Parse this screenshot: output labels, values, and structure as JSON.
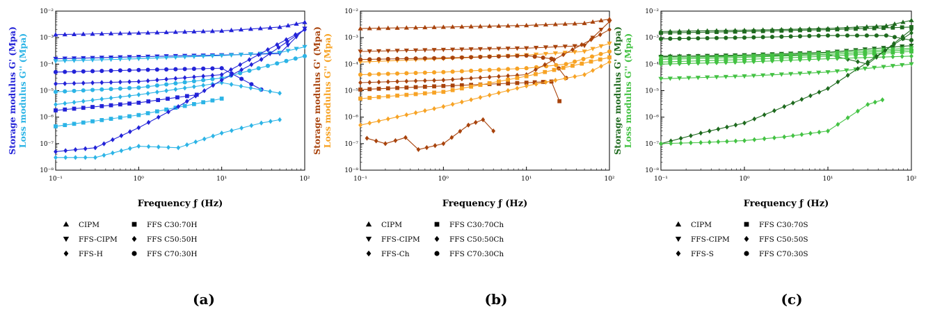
{
  "chart_data": [
    {
      "panel_label": "(a)",
      "type": "line",
      "xlabel": "Frequency ƒ (Hz)",
      "ylabel_storage": "Storage modulus G' (Mpa)",
      "ylabel_loss": "Loss modulus G'' (Mpa)",
      "x_scale": "log",
      "y_scale": "log",
      "xlim": [
        0.1,
        100
      ],
      "ylim": [
        1e-08,
        0.01
      ],
      "x_ticks": [
        "10⁻¹",
        "10⁰",
        "10¹",
        "10²"
      ],
      "y_ticks": [
        "10⁻⁸",
        "10⁻⁷",
        "10⁻⁶",
        "10⁻⁵",
        "10⁻⁴",
        "10⁻³",
        "10⁻²"
      ],
      "colors": {
        "storage": "#2323d8",
        "loss": "#2cb4e6"
      },
      "legend_col1": [
        "CIPM",
        "FFS-CIPM",
        "FFS-H"
      ],
      "legend_col2": [
        "FFS C30:70H",
        "FFS C50:50H",
        "FFS C70:30H"
      ],
      "series": [
        {
          "name": "CIPM",
          "marker": "triangle-up",
          "modulus": "storage",
          "x": [
            0.1,
            1,
            10,
            50,
            100
          ],
          "y": [
            0.0013,
            0.0015,
            0.0018,
            0.0025,
            0.0038
          ]
        },
        {
          "name": "FFS-CIPM",
          "marker": "triangle-down",
          "modulus": "storage",
          "x": [
            0.1,
            1,
            10,
            50,
            100
          ],
          "y": [
            0.00016,
            0.00019,
            0.00022,
            0.00025,
            0.0022
          ]
        },
        {
          "name": "FFS-CIPM",
          "marker": "triangle-down",
          "modulus": "loss",
          "x": [
            0.1,
            1,
            10,
            50,
            100
          ],
          "y": [
            0.00013,
            0.00016,
            0.00021,
            0.00027,
            0.00045
          ]
        },
        {
          "name": "FFS C70:30H",
          "marker": "circle",
          "modulus": "storage",
          "x": [
            0.1,
            1,
            10,
            30
          ],
          "y": [
            5e-05,
            6e-05,
            7e-05,
            1.1e-05
          ]
        },
        {
          "name": "FFS C70:30H",
          "marker": "circle",
          "modulus": "loss",
          "x": [
            0.1,
            1,
            10,
            100
          ],
          "y": [
            9e-06,
            1.3e-05,
            3e-05,
            0.0002
          ]
        },
        {
          "name": "FFS C50:50H",
          "marker": "diamond",
          "modulus": "storage",
          "x": [
            0.1,
            1,
            10,
            100
          ],
          "y": [
            1.8e-05,
            2.2e-05,
            4e-05,
            0.002
          ]
        },
        {
          "name": "FFS C50:50H",
          "marker": "diamond",
          "modulus": "loss",
          "x": [
            0.1,
            1,
            10,
            50
          ],
          "y": [
            3e-06,
            7e-06,
            2e-05,
            8e-06
          ]
        },
        {
          "name": "FFS C30:70H",
          "marker": "square",
          "modulus": "storage",
          "x": [
            0.1,
            1,
            5
          ],
          "y": [
            1.8e-06,
            3.5e-06,
            7e-06
          ]
        },
        {
          "name": "FFS C30:70H",
          "marker": "square",
          "modulus": "loss",
          "x": [
            0.1,
            1,
            10
          ],
          "y": [
            4.5e-07,
            1.2e-06,
            5e-06
          ]
        },
        {
          "name": "FFS-H",
          "marker": "diamond",
          "modulus": "storage",
          "x": [
            0.1,
            0.3,
            1,
            3,
            10,
            30,
            100
          ],
          "y": [
            5e-08,
            7e-08,
            4e-07,
            2.5e-06,
            2.5e-05,
            0.00015,
            0.002
          ]
        },
        {
          "name": "FFS-H",
          "marker": "diamond",
          "modulus": "loss",
          "x": [
            0.1,
            0.3,
            1,
            3,
            10,
            30,
            50
          ],
          "y": [
            3e-08,
            3e-08,
            8e-08,
            7e-08,
            2.5e-07,
            6e-07,
            8e-07
          ]
        }
      ]
    },
    {
      "panel_label": "(b)",
      "type": "line",
      "xlabel": "Frequency ƒ (Hz)",
      "ylabel_storage": "Storage modulus G' (Mpa)",
      "ylabel_loss": "Loss modulus G'' (Mpa)",
      "x_scale": "log",
      "y_scale": "log",
      "xlim": [
        0.1,
        100
      ],
      "ylim": [
        1e-08,
        0.01
      ],
      "x_ticks": [
        "10⁻¹",
        "10⁰",
        "10¹",
        "10²"
      ],
      "y_ticks": [
        "10⁻⁸",
        "10⁻⁷",
        "10⁻⁶",
        "10⁻⁵",
        "10⁻⁴",
        "10⁻³",
        "10⁻²"
      ],
      "colors": {
        "storage": "#a8430c",
        "loss": "#f7a325"
      },
      "legend_col1": [
        "CIPM",
        "FFS-CIPM",
        "FFS-Ch"
      ],
      "legend_col2": [
        "FFS C30:70Ch",
        "FFS C50:50Ch",
        "FFS C70:30Ch"
      ],
      "series": [
        {
          "name": "CIPM",
          "marker": "triangle-up",
          "modulus": "storage",
          "x": [
            0.1,
            1,
            10,
            50,
            100
          ],
          "y": [
            0.0022,
            0.0025,
            0.0029,
            0.0035,
            0.005
          ]
        },
        {
          "name": "FFS-CIPM",
          "marker": "triangle-down",
          "modulus": "storage",
          "x": [
            0.1,
            1,
            10,
            50,
            100
          ],
          "y": [
            0.0003,
            0.00035,
            0.0004,
            0.0005,
            0.004
          ]
        },
        {
          "name": "FFS-CIPM",
          "marker": "triangle-down",
          "modulus": "loss",
          "x": [
            0.1,
            1,
            10,
            50,
            100
          ],
          "y": [
            0.00012,
            0.00016,
            0.00022,
            0.0003,
            0.0006
          ]
        },
        {
          "name": "FFS C70:30Ch",
          "marker": "circle",
          "modulus": "storage",
          "x": [
            0.1,
            1,
            10,
            20,
            30
          ],
          "y": [
            0.00015,
            0.00017,
            0.00021,
            0.00016,
            3e-05
          ]
        },
        {
          "name": "FFS C70:30Ch",
          "marker": "circle",
          "modulus": "loss",
          "x": [
            0.1,
            1,
            10,
            30,
            100
          ],
          "y": [
            4e-05,
            5e-05,
            7e-05,
            0.0001,
            0.0003
          ]
        },
        {
          "name": "FFS C50:50Ch",
          "marker": "diamond",
          "modulus": "storage",
          "x": [
            0.1,
            1,
            10,
            100
          ],
          "y": [
            2e-05,
            2.5e-05,
            4e-05,
            0.002
          ]
        },
        {
          "name": "FFS C30:70Ch",
          "marker": "square",
          "modulus": "storage",
          "x": [
            0.1,
            1,
            10,
            20,
            25
          ],
          "y": [
            1.1e-05,
            1.5e-05,
            2e-05,
            2.2e-05,
            4e-06
          ]
        },
        {
          "name": "FFS C30:70Ch",
          "marker": "square",
          "modulus": "loss",
          "x": [
            0.1,
            1,
            10,
            100
          ],
          "y": [
            5e-06,
            9e-06,
            3.5e-05,
            0.00018
          ]
        },
        {
          "name": "FFS-Ch",
          "marker": "diamond",
          "modulus": "loss",
          "x": [
            0.1,
            1,
            10,
            50,
            100
          ],
          "y": [
            5e-07,
            2.5e-06,
            1.5e-05,
            4e-05,
            0.00012
          ]
        },
        {
          "name": "FFS-Ch",
          "marker": "diamond",
          "modulus": "storage",
          "x": [
            0.12,
            0.2,
            0.35,
            0.5,
            1,
            2,
            3,
            4
          ],
          "y": [
            1.6e-07,
            1e-07,
            1.7e-07,
            6e-08,
            1e-07,
            5e-07,
            8e-07,
            3e-07
          ]
        }
      ]
    },
    {
      "panel_label": "(c)",
      "type": "line",
      "xlabel": "Frequency ƒ (Hz)",
      "ylabel_storage": "Storage modulus G' (Mpa)",
      "ylabel_loss": "Loss modulus G'' (Mpa)",
      "x_scale": "log",
      "y_scale": "log",
      "xlim": [
        0.1,
        100
      ],
      "ylim": [
        1e-08,
        0.01
      ],
      "x_ticks": [
        "10⁻¹",
        "10⁰",
        "10¹",
        "10²"
      ],
      "y_ticks": [
        "10⁻⁸",
        "10⁻⁷",
        "10⁻⁶",
        "10⁻⁵",
        "10⁻⁴",
        "10⁻³",
        "10⁻²"
      ],
      "colors": {
        "storage": "#1e6a1e",
        "loss": "#43c243"
      },
      "legend_col1": [
        "CIPM",
        "FFS-CIPM",
        "FFS-S"
      ],
      "legend_col2": [
        "FFS C30:70S",
        "FFS C50:50S",
        "FFS C70:30S"
      ],
      "series": [
        {
          "name": "CIPM",
          "marker": "triangle-up",
          "modulus": "storage",
          "x": [
            0.1,
            1,
            10,
            50,
            100
          ],
          "y": [
            0.0017,
            0.0019,
            0.0022,
            0.0028,
            0.0045
          ]
        },
        {
          "name": "FFS C30:70S",
          "marker": "square",
          "modulus": "storage",
          "x": [
            0.1,
            1,
            10,
            100
          ],
          "y": [
            0.0015,
            0.0017,
            0.002,
            0.0025
          ]
        },
        {
          "name": "FFS C70:30S",
          "marker": "circle",
          "modulus": "storage",
          "x": [
            0.1,
            1,
            10,
            50,
            100
          ],
          "y": [
            0.0009,
            0.001,
            0.0012,
            0.0012,
            0.0008
          ]
        },
        {
          "name": "FFS C50:50S",
          "marker": "diamond",
          "modulus": "storage",
          "x": [
            0.1,
            1,
            10,
            30,
            100
          ],
          "y": [
            0.0002,
            0.0002,
            0.00023,
            0.0001,
            0.002
          ]
        },
        {
          "name": "FFS-CIPM",
          "marker": "triangle-down",
          "modulus": "storage",
          "x": [
            0.1,
            1,
            10,
            100
          ],
          "y": [
            0.00019,
            0.00022,
            0.00028,
            0.0005
          ]
        },
        {
          "name": "FFS-CIPM",
          "marker": "triangle-down",
          "modulus": "loss",
          "x": [
            0.1,
            1,
            10,
            100
          ],
          "y": [
            0.00017,
            0.0002,
            0.00026,
            0.0004
          ]
        },
        {
          "name": "FFS C70:30S",
          "marker": "circle",
          "modulus": "loss",
          "x": [
            0.1,
            1,
            10,
            100
          ],
          "y": [
            0.00015,
            0.00018,
            0.00023,
            0.00035
          ]
        },
        {
          "name": "FFS C30:70S",
          "marker": "square",
          "modulus": "loss",
          "x": [
            0.1,
            1,
            10,
            100
          ],
          "y": [
            0.00012,
            0.00015,
            0.0002,
            0.0003
          ]
        },
        {
          "name": "FFS C50:50S",
          "marker": "diamond",
          "modulus": "loss",
          "x": [
            0.1,
            1,
            10,
            100
          ],
          "y": [
            0.0001,
            0.00012,
            0.00016,
            0.0002
          ]
        },
        {
          "name": "FFS-S",
          "marker": "triangle-down",
          "modulus": "loss",
          "x": [
            0.1,
            1,
            10,
            100
          ],
          "y": [
            2.8e-05,
            3.5e-05,
            5e-05,
            0.0001
          ]
        },
        {
          "name": "FFS-S",
          "marker": "diamond",
          "modulus": "storage",
          "x": [
            0.1,
            0.3,
            1,
            3,
            10,
            30,
            100
          ],
          "y": [
            1e-07,
            2.5e-07,
            6e-07,
            2.5e-06,
            1.2e-05,
            0.00012,
            0.0015
          ]
        },
        {
          "name": "FFS-S",
          "marker": "diamond",
          "modulus": "loss",
          "x": [
            0.1,
            0.3,
            1,
            3,
            10,
            30,
            45
          ],
          "y": [
            1e-07,
            1.1e-07,
            1.3e-07,
            1.8e-07,
            3e-07,
            3e-06,
            4.5e-06
          ]
        }
      ]
    }
  ]
}
